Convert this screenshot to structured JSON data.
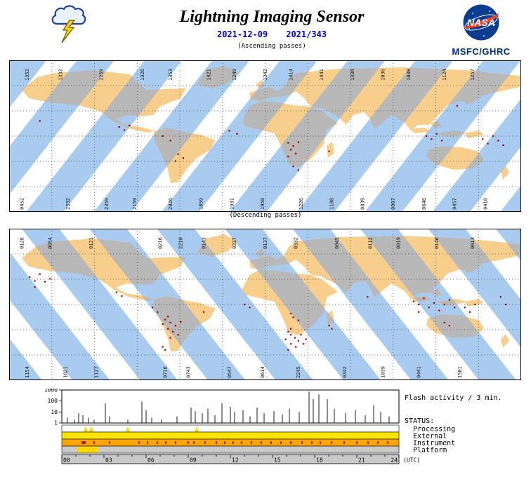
{
  "header": {
    "title": "Lightning Imaging Sensor",
    "date": "2021-12-09",
    "day_of_year": "2021/343",
    "ascending_label": "(Ascending passes)",
    "descending_label": "(Descending passes)",
    "nasa_logo_text": "NASA",
    "org": "MSFC/GHRC"
  },
  "colors": {
    "swath_blue": "#A9CBEF",
    "swath_land_gray": "#B8B8B8",
    "land_tan": "#F8CE8C",
    "flash_red": "#A40000",
    "date_blue": "#0000CD",
    "org_blue": "#002B7F",
    "nasa_blue": "#0B3D91",
    "nasa_red": "#FC3D21",
    "status_yellow": "#FFE400",
    "status_orange": "#FFA500",
    "status_gray": "#C9C9C9"
  },
  "maps": {
    "ascending": {
      "top_labels": [
        {
          "x": 0.03,
          "text": "1352"
        },
        {
          "x": 0.095,
          "text": "1332"
        },
        {
          "x": 0.175,
          "text": "1259"
        },
        {
          "x": 0.255,
          "text": "1326"
        },
        {
          "x": 0.31,
          "text": "1353"
        },
        {
          "x": 0.385,
          "text": "1421"
        },
        {
          "x": 0.435,
          "text": "1249"
        },
        {
          "x": 0.495,
          "text": "1342"
        },
        {
          "x": 0.545,
          "text": "1414"
        },
        {
          "x": 0.605,
          "text": "1441"
        },
        {
          "x": 0.665,
          "text": "1336"
        },
        {
          "x": 0.725,
          "text": "1036"
        },
        {
          "x": 0.775,
          "text": "1030"
        },
        {
          "x": 0.845,
          "text": "1124"
        },
        {
          "x": 0.9,
          "text": "1257"
        }
      ],
      "bottom_labels": [
        {
          "x": 0.02,
          "text": "0452"
        },
        {
          "x": 0.11,
          "text": "2332"
        },
        {
          "x": 0.185,
          "text": "2359"
        },
        {
          "x": 0.24,
          "text": "2159"
        },
        {
          "x": 0.31,
          "text": "2026"
        },
        {
          "x": 0.37,
          "text": "1859"
        },
        {
          "x": 0.43,
          "text": "1931"
        },
        {
          "x": 0.49,
          "text": "1958"
        },
        {
          "x": 0.565,
          "text": "1226"
        },
        {
          "x": 0.625,
          "text": "1108"
        },
        {
          "x": 0.685,
          "text": "0839"
        },
        {
          "x": 0.745,
          "text": "0907"
        },
        {
          "x": 0.805,
          "text": "0640"
        },
        {
          "x": 0.865,
          "text": "0457"
        },
        {
          "x": 0.925,
          "text": "0410"
        }
      ],
      "flash_points": [
        [
          0.215,
          0.44
        ],
        [
          0.225,
          0.46
        ],
        [
          0.235,
          0.43
        ],
        [
          0.3,
          0.5
        ],
        [
          0.315,
          0.53
        ],
        [
          0.33,
          0.62
        ],
        [
          0.34,
          0.645
        ],
        [
          0.325,
          0.665
        ],
        [
          0.43,
          0.465
        ],
        [
          0.445,
          0.485
        ],
        [
          0.545,
          0.545
        ],
        [
          0.555,
          0.565
        ],
        [
          0.565,
          0.54
        ],
        [
          0.55,
          0.59
        ],
        [
          0.56,
          0.615
        ],
        [
          0.545,
          0.635
        ],
        [
          0.555,
          0.7
        ],
        [
          0.565,
          0.725
        ],
        [
          0.625,
          0.6
        ],
        [
          0.815,
          0.5
        ],
        [
          0.825,
          0.52
        ],
        [
          0.835,
          0.485
        ],
        [
          0.845,
          0.53
        ],
        [
          0.925,
          0.52
        ],
        [
          0.935,
          0.55
        ],
        [
          0.945,
          0.5
        ],
        [
          0.955,
          0.53
        ],
        [
          0.965,
          0.56
        ],
        [
          0.06,
          0.4
        ],
        [
          0.875,
          0.3
        ]
      ]
    },
    "descending": {
      "top_labels": [
        {
          "x": 0.02,
          "text": "0128"
        },
        {
          "x": 0.075,
          "text": "0054"
        },
        {
          "x": 0.155,
          "text": "0121"
        },
        {
          "x": 0.29,
          "text": "0216"
        },
        {
          "x": 0.33,
          "text": "2210"
        },
        {
          "x": 0.375,
          "text": "0143"
        },
        {
          "x": 0.435,
          "text": "0237"
        },
        {
          "x": 0.495,
          "text": "0137"
        },
        {
          "x": 0.555,
          "text": "0332"
        },
        {
          "x": 0.635,
          "text": "0045"
        },
        {
          "x": 0.7,
          "text": "0112"
        },
        {
          "x": 0.755,
          "text": "0019"
        },
        {
          "x": 0.83,
          "text": "0146"
        },
        {
          "x": 0.9,
          "text": "0013"
        }
      ],
      "bottom_labels": [
        {
          "x": 0.03,
          "text": "1154"
        },
        {
          "x": 0.105,
          "text": "1021"
        },
        {
          "x": 0.165,
          "text": "1127"
        },
        {
          "x": 0.3,
          "text": "0716"
        },
        {
          "x": 0.345,
          "text": "0743"
        },
        {
          "x": 0.425,
          "text": "0547"
        },
        {
          "x": 0.49,
          "text": "0614"
        },
        {
          "x": 0.56,
          "text": "2245"
        },
        {
          "x": 0.65,
          "text": "0342"
        },
        {
          "x": 0.725,
          "text": "1039"
        },
        {
          "x": 0.795,
          "text": "0441"
        },
        {
          "x": 0.875,
          "text": "1501"
        }
      ],
      "flash_points": [
        [
          0.04,
          0.32
        ],
        [
          0.05,
          0.345
        ],
        [
          0.06,
          0.3
        ],
        [
          0.07,
          0.35
        ],
        [
          0.05,
          0.385
        ],
        [
          0.08,
          0.33
        ],
        [
          0.21,
          0.42
        ],
        [
          0.22,
          0.445
        ],
        [
          0.28,
          0.52
        ],
        [
          0.29,
          0.55
        ],
        [
          0.305,
          0.6
        ],
        [
          0.315,
          0.62
        ],
        [
          0.325,
          0.64
        ],
        [
          0.31,
          0.66
        ],
        [
          0.32,
          0.68
        ],
        [
          0.3,
          0.63
        ],
        [
          0.335,
          0.615
        ],
        [
          0.33,
          0.7
        ],
        [
          0.315,
          0.72
        ],
        [
          0.31,
          0.58
        ],
        [
          0.3,
          0.78
        ],
        [
          0.305,
          0.8
        ],
        [
          0.38,
          0.55
        ],
        [
          0.46,
          0.5
        ],
        [
          0.47,
          0.52
        ],
        [
          0.55,
          0.56
        ],
        [
          0.555,
          0.585
        ],
        [
          0.565,
          0.605
        ],
        [
          0.545,
          0.68
        ],
        [
          0.55,
          0.7
        ],
        [
          0.558,
          0.72
        ],
        [
          0.565,
          0.74
        ],
        [
          0.55,
          0.76
        ],
        [
          0.54,
          0.73
        ],
        [
          0.57,
          0.7
        ],
        [
          0.56,
          0.78
        ],
        [
          0.545,
          0.8
        ],
        [
          0.575,
          0.76
        ],
        [
          0.58,
          0.73
        ],
        [
          0.55,
          0.66
        ],
        [
          0.625,
          0.64
        ],
        [
          0.63,
          0.66
        ],
        [
          0.7,
          0.45
        ],
        [
          0.79,
          0.48
        ],
        [
          0.8,
          0.5
        ],
        [
          0.81,
          0.46
        ],
        [
          0.82,
          0.52
        ],
        [
          0.83,
          0.49
        ],
        [
          0.84,
          0.54
        ],
        [
          0.85,
          0.5
        ],
        [
          0.86,
          0.47
        ],
        [
          0.87,
          0.52
        ],
        [
          0.8,
          0.55
        ],
        [
          0.85,
          0.62
        ],
        [
          0.86,
          0.64
        ],
        [
          0.89,
          0.52
        ],
        [
          0.9,
          0.55
        ],
        [
          0.91,
          0.5
        ],
        [
          0.96,
          0.45
        ],
        [
          0.97,
          0.5
        ]
      ]
    }
  },
  "chart_data": {
    "flash_activity": {
      "type": "stem",
      "title": "Flash activity / 3 min.",
      "yscale": "log",
      "ylim": [
        1,
        1000
      ],
      "y_ticks": [
        1000,
        100,
        10,
        1
      ],
      "xlim_hours": [
        0,
        24
      ],
      "x_tick_labels": [
        "00",
        "03",
        "06",
        "09",
        "12",
        "15",
        "18",
        "21",
        "24"
      ],
      "x_unit_label": "(UTC)",
      "x_hours": [
        0.4,
        0.9,
        1.2,
        1.5,
        1.9,
        2.3,
        3.1,
        3.4,
        4.7,
        5.7,
        6.0,
        6.4,
        7.1,
        8.2,
        9.2,
        9.5,
        10.0,
        10.4,
        10.9,
        11.4,
        12.0,
        12.3,
        12.9,
        13.4,
        13.9,
        14.4,
        15.1,
        15.7,
        16.2,
        16.9,
        17.6,
        17.9,
        18.3,
        18.9,
        19.4,
        20.2,
        20.9,
        21.6,
        22.2,
        22.7,
        23.3
      ],
      "values": [
        3,
        2,
        8,
        5,
        3,
        2,
        60,
        4,
        2,
        90,
        15,
        3,
        2,
        4,
        25,
        12,
        8,
        20,
        5,
        60,
        30,
        10,
        15,
        4,
        25,
        8,
        12,
        6,
        20,
        10,
        700,
        150,
        400,
        150,
        20,
        8,
        15,
        5,
        40,
        10,
        4
      ]
    },
    "status": {
      "heading": "STATUS:",
      "rows": [
        {
          "label": "Processing",
          "color": "#FFFFFF",
          "mark_color": "#FFD700",
          "marks_hours": [
            1.7,
            2.1,
            4.7,
            9.6
          ]
        },
        {
          "label": "External",
          "color": "#FFE400"
        },
        {
          "label": "Instrument",
          "color": "#FFA500",
          "mark_color": "#990000",
          "marks_hours": [
            1.45,
            1.55,
            1.65,
            2.3,
            3.4,
            5.5,
            6.1,
            6.8,
            7.4,
            8.1,
            9.0,
            9.4,
            10.2,
            11.0,
            11.6,
            12.2,
            12.8,
            13.5,
            14.2,
            14.9,
            15.6,
            16.3,
            17.1,
            17.8,
            18.4,
            19.2,
            20.1,
            21.0,
            21.8,
            22.5,
            23.2
          ]
        },
        {
          "label": "Platform",
          "color": "#C9C9C9",
          "segments": [
            {
              "start": 1.1,
              "end": 2.6,
              "color": "#FFD700"
            }
          ]
        }
      ]
    }
  }
}
